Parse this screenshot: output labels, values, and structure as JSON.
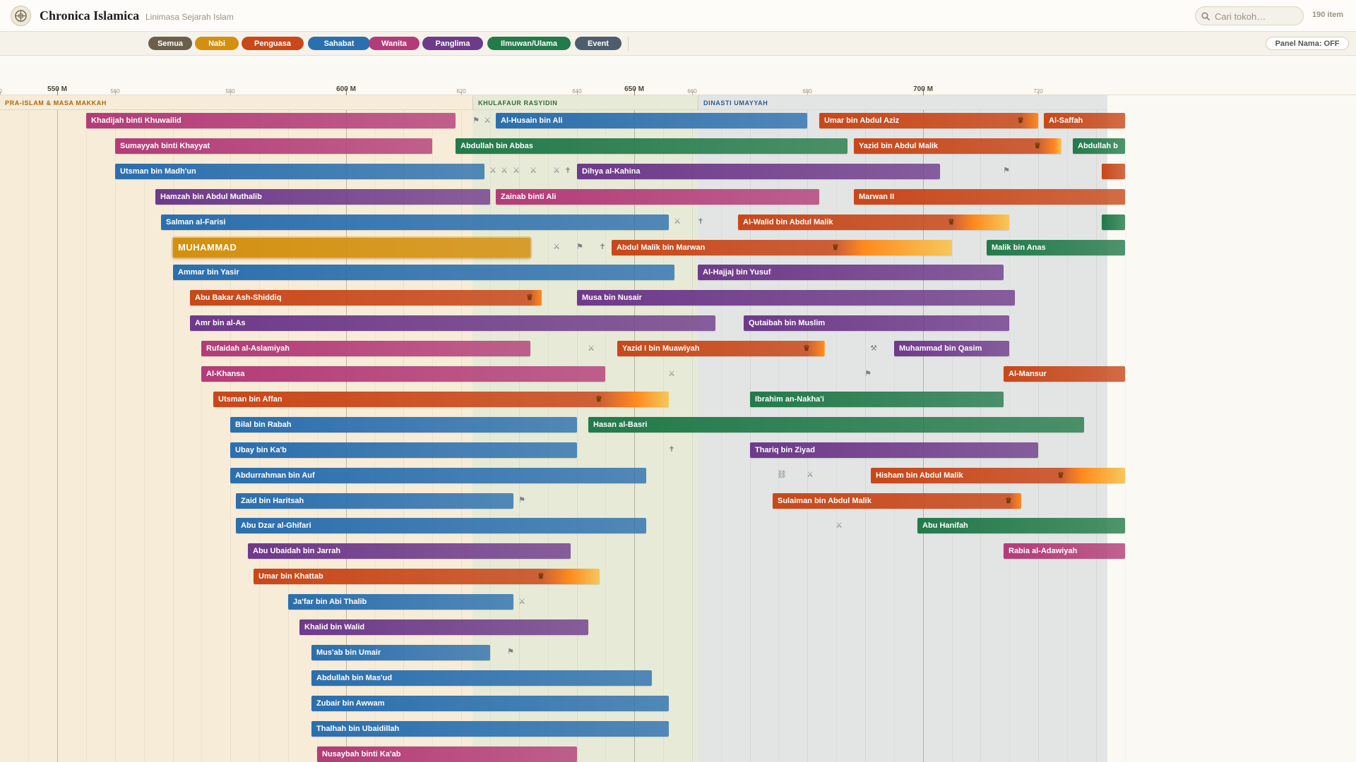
{
  "app": {
    "title": "Chronica Islamica",
    "subtitle": "Linimasa Sejarah Islam",
    "item_count": "190 item"
  },
  "search": {
    "placeholder": "Cari tokoh…"
  },
  "filters": [
    {
      "id": "semua",
      "label": "Semua",
      "color": "#6b5f4b"
    },
    {
      "id": "nabi",
      "label": "Nabi",
      "color": "#d3900f"
    },
    {
      "id": "penguasa",
      "label": "Penguasa",
      "color": "#c8481a"
    },
    {
      "id": "sahabat",
      "label": "Sahabat",
      "color": "#2b6fae"
    },
    {
      "id": "wanita",
      "label": "Wanita",
      "color": "#b33c78"
    },
    {
      "id": "panglima",
      "label": "Panglima",
      "color": "#6e3a8a"
    },
    {
      "id": "ilmuwan",
      "label": "Ilmuwan/Ulama",
      "color": "#237a4a"
    },
    {
      "id": "event",
      "label": "Event",
      "color": "#4e5d6c"
    }
  ],
  "panel_toggle": "Panel Nama: OFF",
  "colors": {
    "nabi": "#d3900f",
    "penguasa": "#c8481a",
    "sahabat": "#2b6fae",
    "wanita": "#b33c78",
    "panglima": "#6e3a8a",
    "ilmuwan": "#237a4a",
    "gold_fade": "#f6c85a"
  },
  "axis": {
    "ticks": [
      {
        "year": 540,
        "label": "40",
        "major": false
      },
      {
        "year": 550,
        "label": "550 M",
        "major": true
      },
      {
        "year": 560,
        "label": "560",
        "major": false
      },
      {
        "year": 580,
        "label": "580",
        "major": false
      },
      {
        "year": 600,
        "label": "600 M",
        "major": true
      },
      {
        "year": 620,
        "label": "620",
        "major": false
      },
      {
        "year": 640,
        "label": "640",
        "major": false
      },
      {
        "year": 650,
        "label": "650 M",
        "major": true
      },
      {
        "year": 660,
        "label": "660",
        "major": false
      },
      {
        "year": 680,
        "label": "680",
        "major": false
      },
      {
        "year": 700,
        "label": "700 M",
        "major": true
      },
      {
        "year": 720,
        "label": "720",
        "major": false
      }
    ]
  },
  "eras": [
    {
      "label": "PRA-ISLAM & MASA MAKKAH",
      "start": 540,
      "end": 622,
      "bg": "#f6ecd8",
      "fg": "#a86a12"
    },
    {
      "label": "KHULAFAUR RASYIDIN",
      "start": 622,
      "end": 661,
      "bg": "#e6ead6",
      "fg": "#2f6b3a"
    },
    {
      "label": "DINASTI UMAYYAH",
      "start": 661,
      "end": 732,
      "bg": "#e3e5e4",
      "fg": "#2b5c8a"
    }
  ],
  "rows": [
    {
      "bars": [
        {
          "name": "Khadijah binti Khuwailid",
          "cat": "wanita",
          "start": 555,
          "end": 619
        },
        {
          "name": "Al-Husain bin Ali",
          "cat": "sahabat",
          "start": 626,
          "end": 680
        },
        {
          "name": "Umar bin Abdul Aziz",
          "cat": "penguasa",
          "start": 682,
          "end": 720,
          "reign": 717
        },
        {
          "name": "Al-Saffah",
          "cat": "penguasa",
          "start": 721,
          "end": 735
        }
      ],
      "markers": [
        {
          "year": 622.5,
          "icon": "⚑"
        },
        {
          "year": 624.5,
          "icon": "⚔"
        }
      ]
    },
    {
      "bars": [
        {
          "name": "Sumayyah binti Khayyat",
          "cat": "wanita",
          "start": 560,
          "end": 615
        },
        {
          "name": "Abdullah bin Abbas",
          "cat": "ilmuwan",
          "start": 619,
          "end": 687
        },
        {
          "name": "Yazid bin Abdul Malik",
          "cat": "penguasa",
          "start": 688,
          "end": 724,
          "reign": 720
        },
        {
          "name": "Abdullah b",
          "cat": "ilmuwan",
          "start": 726,
          "end": 735
        }
      ],
      "markers": []
    },
    {
      "bars": [
        {
          "name": "Utsman bin Madh'un",
          "cat": "sahabat",
          "start": 560,
          "end": 624
        },
        {
          "name": "Dihya al-Kahina",
          "cat": "panglima",
          "start": 640,
          "end": 703
        },
        {
          "name": "",
          "cat": "penguasa",
          "start": 731,
          "end": 735
        }
      ],
      "markers": [
        {
          "year": 625.5,
          "icon": "⚔"
        },
        {
          "year": 627.5,
          "icon": "⚔"
        },
        {
          "year": 629.5,
          "icon": "⚔"
        },
        {
          "year": 632.5,
          "icon": "⚔"
        },
        {
          "year": 636.5,
          "icon": "⚔"
        },
        {
          "year": 638.5,
          "icon": "✝"
        },
        {
          "year": 714.5,
          "icon": "⚑"
        }
      ]
    },
    {
      "bars": [
        {
          "name": "Hamzah bin Abdul Muthalib",
          "cat": "panglima",
          "start": 567,
          "end": 625
        },
        {
          "name": "Zainab binti Ali",
          "cat": "wanita",
          "start": 626,
          "end": 682
        },
        {
          "name": "Marwan II",
          "cat": "penguasa",
          "start": 688,
          "end": 735
        }
      ],
      "markers": []
    },
    {
      "bars": [
        {
          "name": "Salman al-Farisi",
          "cat": "sahabat",
          "start": 568,
          "end": 656
        },
        {
          "name": "Al-Walid bin Abdul Malik",
          "cat": "penguasa",
          "start": 668,
          "end": 715,
          "reign": 705
        },
        {
          "name": "",
          "cat": "ilmuwan",
          "start": 731,
          "end": 735
        }
      ],
      "markers": [
        {
          "year": 657.5,
          "icon": "⚔"
        },
        {
          "year": 661.5,
          "icon": "✝"
        }
      ]
    },
    {
      "bars": [
        {
          "name": "MUHAMMAD",
          "cat": "nabi",
          "start": 570,
          "end": 632,
          "highlight": true
        },
        {
          "name": "Abdul Malik bin Marwan",
          "cat": "penguasa",
          "start": 646,
          "end": 705,
          "reign": 685
        },
        {
          "name": "Malik bin Anas",
          "cat": "ilmuwan",
          "start": 711,
          "end": 735
        }
      ],
      "markers": [
        {
          "year": 636.5,
          "icon": "⚔"
        },
        {
          "year": 640.5,
          "icon": "⚑"
        },
        {
          "year": 644.5,
          "icon": "✝"
        }
      ]
    },
    {
      "bars": [
        {
          "name": "Ammar bin Yasir",
          "cat": "sahabat",
          "start": 570,
          "end": 657
        },
        {
          "name": "Al-Hajjaj bin Yusuf",
          "cat": "panglima",
          "start": 661,
          "end": 714
        }
      ],
      "markers": []
    },
    {
      "bars": [
        {
          "name": "Abu Bakar Ash-Shiddiq",
          "cat": "penguasa",
          "start": 573,
          "end": 634,
          "reign": 632
        },
        {
          "name": "Musa bin Nusair",
          "cat": "panglima",
          "start": 640,
          "end": 716
        }
      ],
      "markers": []
    },
    {
      "bars": [
        {
          "name": "Amr bin al-As",
          "cat": "panglima",
          "start": 573,
          "end": 664
        },
        {
          "name": "Qutaibah bin Muslim",
          "cat": "panglima",
          "start": 669,
          "end": 715
        }
      ],
      "markers": []
    },
    {
      "bars": [
        {
          "name": "Rufaidah al-Aslamiyah",
          "cat": "wanita",
          "start": 575,
          "end": 632
        },
        {
          "name": "Yazid I bin Muawiyah",
          "cat": "penguasa",
          "start": 647,
          "end": 683,
          "reign": 680
        },
        {
          "name": "Muhammad bin Qasim",
          "cat": "panglima",
          "start": 695,
          "end": 715
        }
      ],
      "markers": [
        {
          "year": 642.5,
          "icon": "⚔"
        },
        {
          "year": 691.5,
          "icon": "⚒"
        }
      ]
    },
    {
      "bars": [
        {
          "name": "Al-Khansa",
          "cat": "wanita",
          "start": 575,
          "end": 645
        },
        {
          "name": "Al-Mansur",
          "cat": "penguasa",
          "start": 714,
          "end": 735
        }
      ],
      "markers": [
        {
          "year": 656.5,
          "icon": "⚔"
        },
        {
          "year": 690.5,
          "icon": "⚑"
        }
      ]
    },
    {
      "bars": [
        {
          "name": "Utsman bin Affan",
          "cat": "penguasa",
          "start": 577,
          "end": 656,
          "reign": 644
        },
        {
          "name": "Ibrahim an-Nakha'i",
          "cat": "ilmuwan",
          "start": 670,
          "end": 714
        }
      ],
      "markers": []
    },
    {
      "bars": [
        {
          "name": "Bilal bin Rabah",
          "cat": "sahabat",
          "start": 580,
          "end": 640
        },
        {
          "name": "Hasan al-Basri",
          "cat": "ilmuwan",
          "start": 642,
          "end": 728
        }
      ],
      "markers": []
    },
    {
      "bars": [
        {
          "name": "Ubay bin Ka'b",
          "cat": "sahabat",
          "start": 580,
          "end": 640
        },
        {
          "name": "Thariq bin Ziyad",
          "cat": "panglima",
          "start": 670,
          "end": 720
        }
      ],
      "markers": [
        {
          "year": 656.5,
          "icon": "✝"
        }
      ]
    },
    {
      "bars": [
        {
          "name": "Abdurrahman bin Auf",
          "cat": "sahabat",
          "start": 580,
          "end": 652
        },
        {
          "name": "Hisham bin Abdul Malik",
          "cat": "penguasa",
          "start": 691,
          "end": 735,
          "reign": 724
        }
      ],
      "markers": [
        {
          "year": 675.5,
          "icon": "⛓"
        },
        {
          "year": 680.5,
          "icon": "⚔"
        }
      ]
    },
    {
      "bars": [
        {
          "name": "Zaid bin Haritsah",
          "cat": "sahabat",
          "start": 581,
          "end": 629
        },
        {
          "name": "Sulaiman bin Abdul Malik",
          "cat": "penguasa",
          "start": 674,
          "end": 717,
          "reign": 715
        }
      ],
      "markers": [
        {
          "year": 630.5,
          "icon": "⚑"
        }
      ]
    },
    {
      "bars": [
        {
          "name": "Abu Dzar al-Ghifari",
          "cat": "sahabat",
          "start": 581,
          "end": 652
        },
        {
          "name": "Abu Hanifah",
          "cat": "ilmuwan",
          "start": 699,
          "end": 735
        }
      ],
      "markers": [
        {
          "year": 685.5,
          "icon": "⚔"
        }
      ]
    },
    {
      "bars": [
        {
          "name": "Abu Ubaidah bin Jarrah",
          "cat": "panglima",
          "start": 583,
          "end": 639
        },
        {
          "name": "Rabia al-Adawiyah",
          "cat": "wanita",
          "start": 714,
          "end": 735
        }
      ],
      "markers": []
    },
    {
      "bars": [
        {
          "name": "Umar bin Khattab",
          "cat": "penguasa",
          "start": 584,
          "end": 644,
          "reign": 634
        }
      ],
      "markers": []
    },
    {
      "bars": [
        {
          "name": "Ja'far bin Abi Thalib",
          "cat": "sahabat",
          "start": 590,
          "end": 629
        }
      ],
      "markers": [
        {
          "year": 630.5,
          "icon": "⚔"
        }
      ]
    },
    {
      "bars": [
        {
          "name": "Khalid bin Walid",
          "cat": "panglima",
          "start": 592,
          "end": 642
        }
      ],
      "markers": []
    },
    {
      "bars": [
        {
          "name": "Mus'ab bin Umair",
          "cat": "sahabat",
          "start": 594,
          "end": 625
        }
      ],
      "markers": [
        {
          "year": 628.5,
          "icon": "⚑"
        }
      ]
    },
    {
      "bars": [
        {
          "name": "Abdullah bin Mas'ud",
          "cat": "sahabat",
          "start": 594,
          "end": 653
        }
      ],
      "markers": []
    },
    {
      "bars": [
        {
          "name": "Zubair bin Awwam",
          "cat": "sahabat",
          "start": 594,
          "end": 656
        }
      ],
      "markers": []
    },
    {
      "bars": [
        {
          "name": "Thalhah bin Ubaidillah",
          "cat": "sahabat",
          "start": 594,
          "end": 656
        }
      ],
      "markers": []
    },
    {
      "bars": [
        {
          "name": "Nusaybah binti Ka'ab",
          "cat": "wanita",
          "start": 595,
          "end": 640
        }
      ],
      "markers": []
    }
  ]
}
